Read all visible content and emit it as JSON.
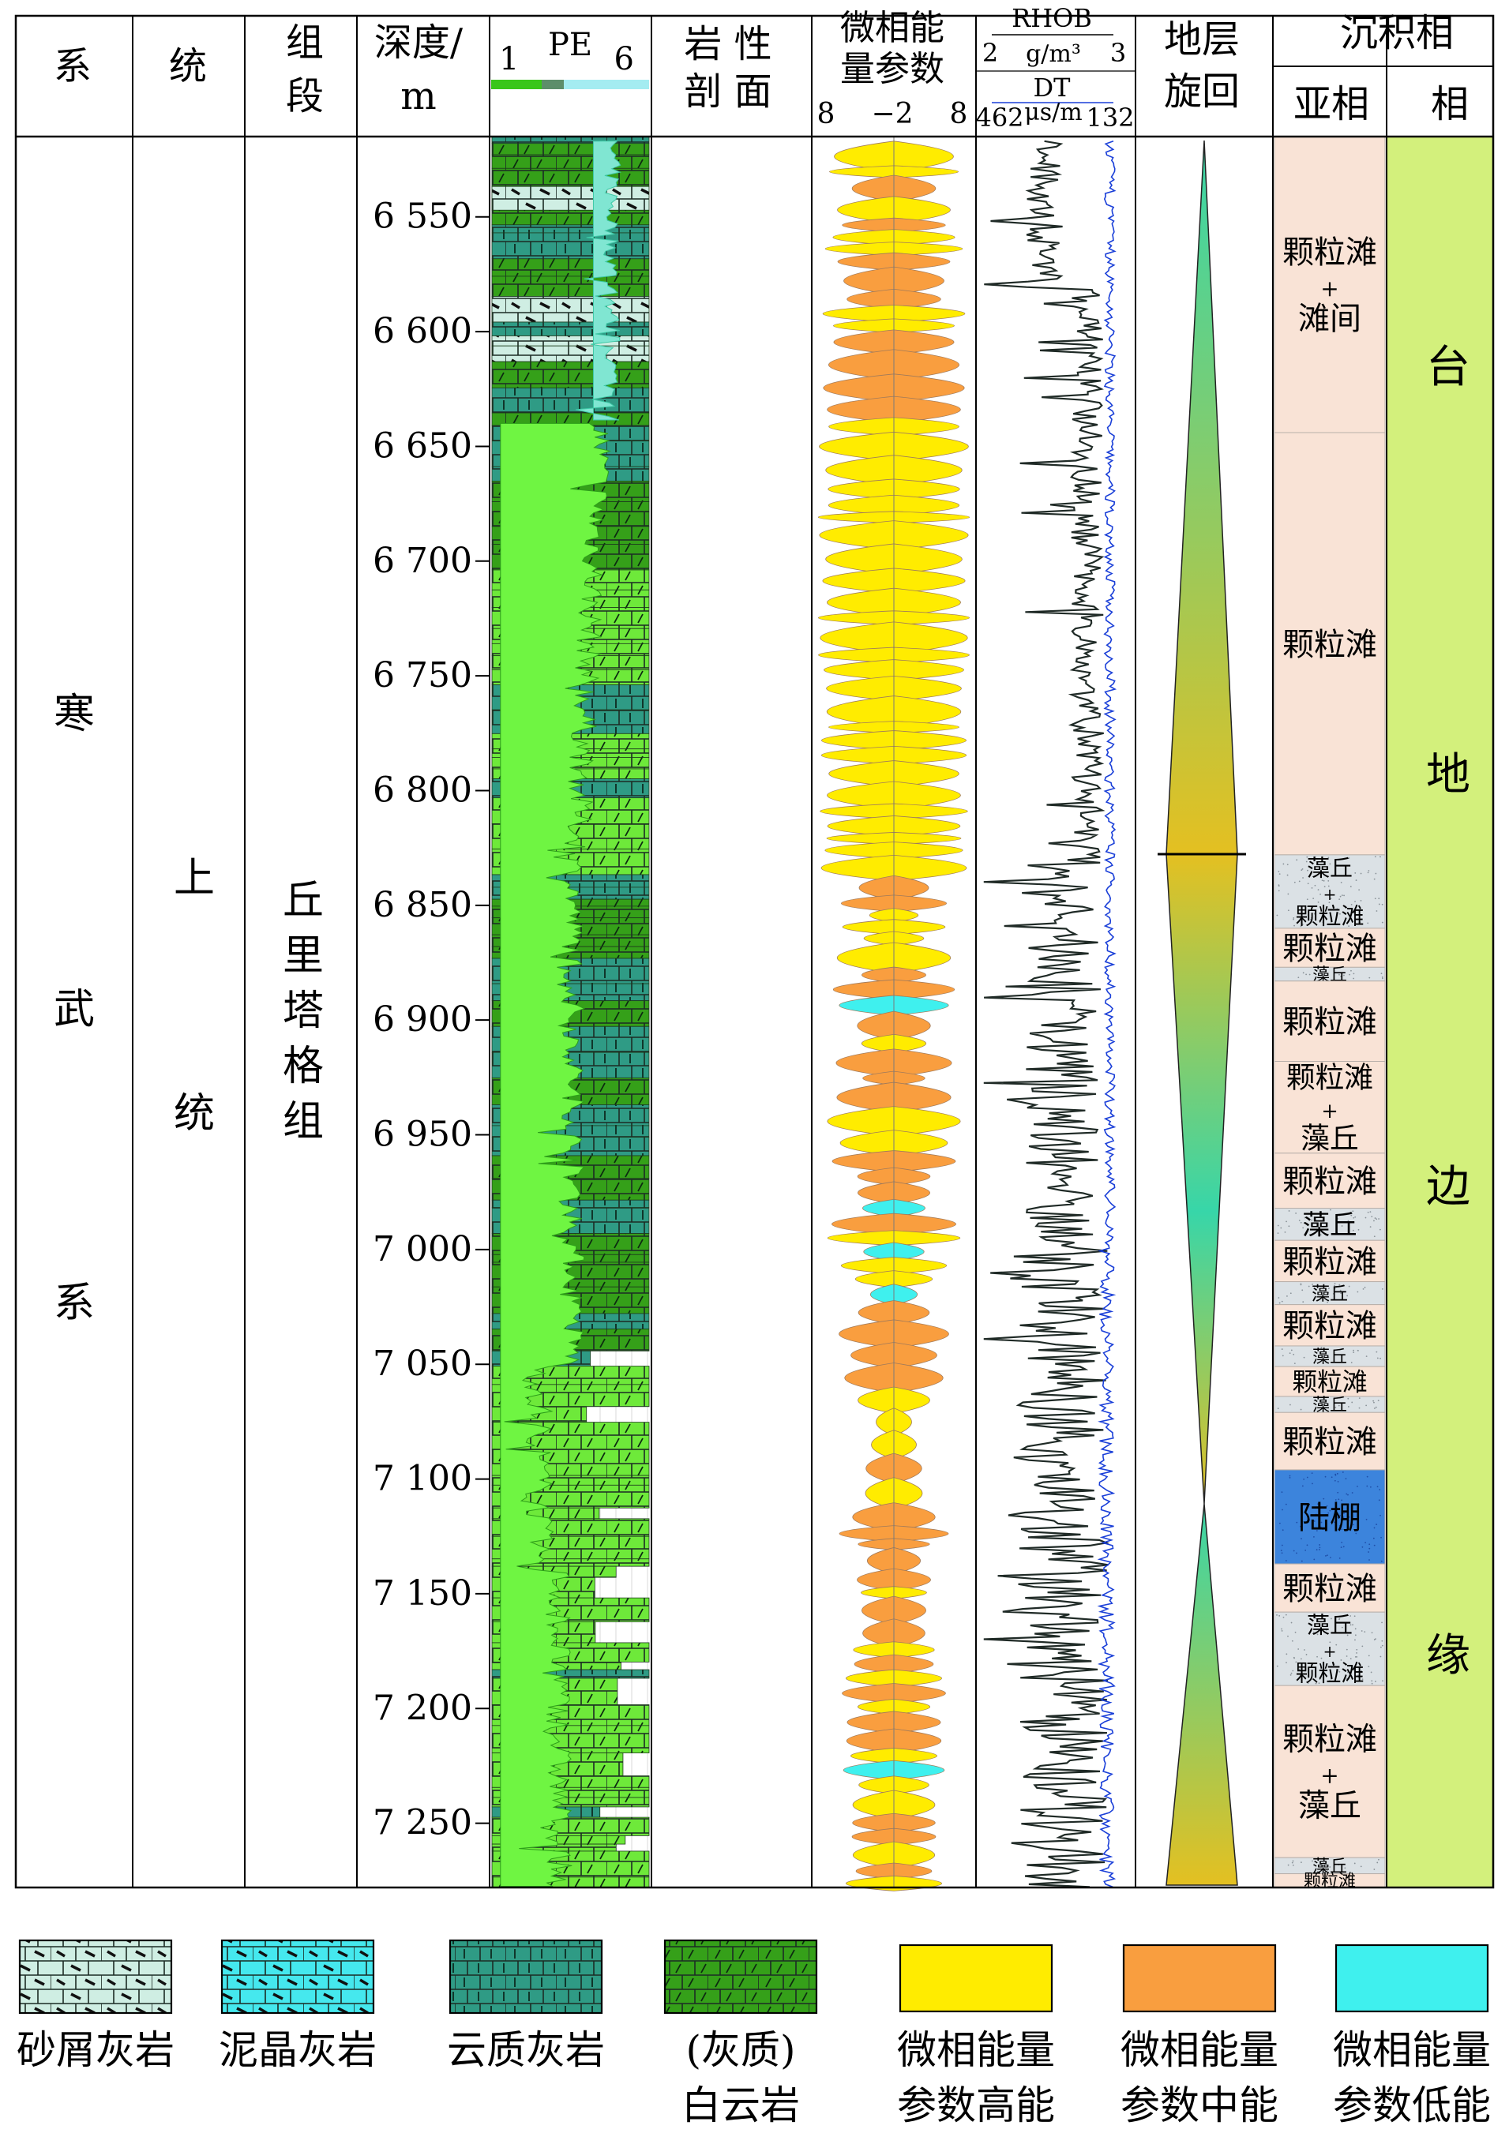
{
  "header": {
    "system": "系",
    "series": "统",
    "formation": [
      "组",
      "段"
    ],
    "depth": [
      "深度/",
      "m"
    ],
    "pe": {
      "min": "1",
      "title": "PE",
      "max": "6"
    },
    "lithology": [
      "岩 性",
      "剖 面"
    ],
    "mpp": {
      "title": [
        "微相能",
        "量参数"
      ],
      "ticks": [
        "8",
        "−2",
        "8"
      ]
    },
    "rhob": {
      "name": "RHOB",
      "min": "2",
      "unit": "g/m³",
      "max": "3"
    },
    "dt": {
      "name": "DT",
      "min": "462",
      "unit": "μs/m",
      "max": "132"
    },
    "cycle": [
      "地层",
      "旋回"
    ],
    "facies_group": "沉积相",
    "subfacies": "亚相",
    "facies": "相"
  },
  "columns": {
    "system": [
      "寒",
      "武",
      "系"
    ],
    "series": [
      "上",
      "统"
    ],
    "formation": [
      "丘",
      "里",
      "塔",
      "格",
      "组"
    ]
  },
  "depth_ticks": [
    "6 550",
    "6 600",
    "6 650",
    "6 700",
    "6 750",
    "6 800",
    "6 850",
    "6 900",
    "6 950",
    "7 000",
    "7 050",
    "7 100",
    "7 150",
    "7 200",
    "7 250"
  ],
  "facies_col": [
    "台",
    "地",
    "边",
    "缘"
  ],
  "subfacies_intervals": [
    {
      "lines": [
        "颗粒滩",
        "+",
        "滩间"
      ],
      "top": 6515,
      "bottom": 6644,
      "type": "grain"
    },
    {
      "lines": [
        "颗粒滩"
      ],
      "top": 6644,
      "bottom": 6828,
      "type": "grain"
    },
    {
      "lines": [
        "藻丘",
        "+",
        "颗粒滩"
      ],
      "top": 6828,
      "bottom": 6860,
      "type": "algal"
    },
    {
      "lines": [
        "颗粒滩"
      ],
      "top": 6860,
      "bottom": 6877,
      "type": "grain"
    },
    {
      "lines": [
        "藻丘"
      ],
      "top": 6877,
      "bottom": 6883,
      "type": "algal"
    },
    {
      "lines": [
        "颗粒滩"
      ],
      "top": 6883,
      "bottom": 6918,
      "type": "grain"
    },
    {
      "lines": [
        "颗粒滩",
        "+",
        "藻丘"
      ],
      "top": 6918,
      "bottom": 6958,
      "type": "grain"
    },
    {
      "lines": [
        "颗粒滩"
      ],
      "top": 6958,
      "bottom": 6982,
      "type": "grain"
    },
    {
      "lines": [
        "藻丘"
      ],
      "top": 6982,
      "bottom": 6996,
      "type": "algal"
    },
    {
      "lines": [
        "颗粒滩"
      ],
      "top": 6996,
      "bottom": 7014,
      "type": "grain"
    },
    {
      "lines": [
        "藻丘"
      ],
      "top": 7014,
      "bottom": 7024,
      "type": "algal"
    },
    {
      "lines": [
        "颗粒滩"
      ],
      "top": 7024,
      "bottom": 7042,
      "type": "grain"
    },
    {
      "lines": [
        "藻丘"
      ],
      "top": 7042,
      "bottom": 7051,
      "type": "algal"
    },
    {
      "lines": [
        "颗粒滩"
      ],
      "top": 7051,
      "bottom": 7064,
      "type": "grain"
    },
    {
      "lines": [
        "藻丘"
      ],
      "top": 7064,
      "bottom": 7071,
      "type": "algal"
    },
    {
      "lines": [
        "颗粒滩"
      ],
      "top": 7071,
      "bottom": 7096,
      "type": "grain"
    },
    {
      "lines": [
        "陆棚"
      ],
      "top": 7096,
      "bottom": 7137,
      "type": "shelf"
    },
    {
      "lines": [
        "颗粒滩"
      ],
      "top": 7137,
      "bottom": 7158,
      "type": "grain"
    },
    {
      "lines": [
        "藻丘",
        "+",
        "颗粒滩"
      ],
      "top": 7158,
      "bottom": 7190,
      "type": "algal"
    },
    {
      "lines": [
        "颗粒滩",
        "+",
        "藻丘"
      ],
      "top": 7190,
      "bottom": 7265,
      "type": "grain"
    },
    {
      "lines": [
        "藻丘"
      ],
      "top": 7265,
      "bottom": 7272,
      "type": "algal"
    },
    {
      "lines": [
        "颗粒滩"
      ],
      "top": 7272,
      "bottom": 7278,
      "type": "grain"
    }
  ],
  "legend": [
    {
      "label": [
        "砂屑灰岩"
      ],
      "pattern": "calcarenite",
      "color": "#cfeee3"
    },
    {
      "label": [
        "泥晶灰岩"
      ],
      "pattern": "micrite",
      "color": "#45e8ee"
    },
    {
      "label": [
        "云质灰岩"
      ],
      "pattern": "dololimestone",
      "color": "#2f9b85"
    },
    {
      "label": [
        "(灰质)",
        "白云岩"
      ],
      "pattern": "dolomite",
      "color": "#35a019"
    },
    {
      "label": [
        "微相能量",
        "参数高能"
      ],
      "pattern": "solid",
      "color": "#ffec00"
    },
    {
      "label": [
        "微相能量",
        "参数中能"
      ],
      "pattern": "solid",
      "color": "#f99e3f"
    },
    {
      "label": [
        "微相能量",
        "参数低能"
      ],
      "pattern": "solid",
      "color": "#3ff0ee"
    }
  ],
  "colors": {
    "grain_bank": "#f9e3d6",
    "algal_mound": "#dbe1e5",
    "shelf": "#3c84dc",
    "facies_column": "#d3f07c",
    "cycle_top": "#37d6a9",
    "cycle_mid": "#e4c021",
    "dt_curve": "#1a3fd8",
    "pe_fill": "#6ff542",
    "pe_fill_top": "#80e6d2"
  }
}
